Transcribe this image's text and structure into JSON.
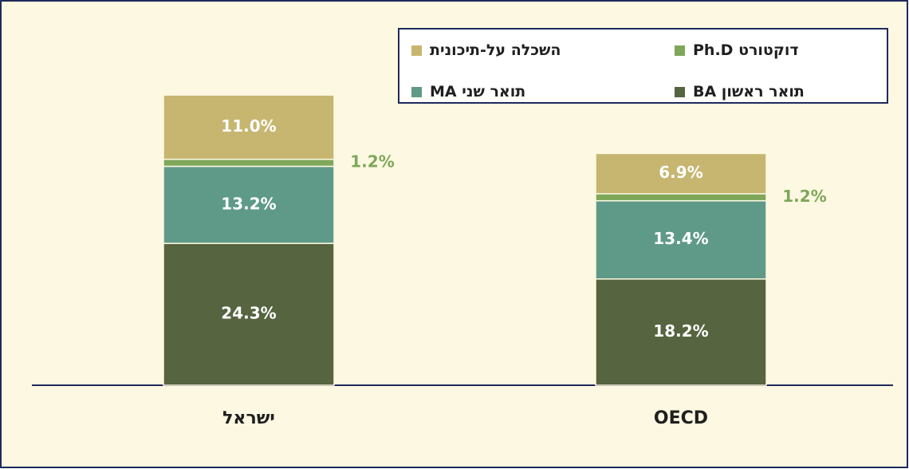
{
  "chart_data": {
    "type": "stacked_bar",
    "categories": [
      "ישראל",
      "OECD"
    ],
    "ylim": [
      0,
      50
    ],
    "series": [
      {
        "name": "תואר ראשון  BA",
        "color": "#566440",
        "values": [
          24.3,
          18.2
        ],
        "value_labels": [
          "24.3%",
          "18.2%"
        ]
      },
      {
        "name": "תואר שני  MA",
        "color": "#5f9a88",
        "values": [
          13.2,
          13.4
        ],
        "value_labels": [
          "13.2%",
          "13.4%"
        ]
      },
      {
        "name": "דוקטורט  Ph.D",
        "color": "#7ea75a",
        "values": [
          1.2,
          1.2
        ],
        "value_labels": [
          "1.2%",
          "1.2%"
        ]
      },
      {
        "name": "השכלה על-תיכונית",
        "color": "#c6b670",
        "values": [
          11.0,
          6.9
        ],
        "value_labels": [
          "11.0%",
          "6.9%"
        ]
      }
    ]
  }
}
